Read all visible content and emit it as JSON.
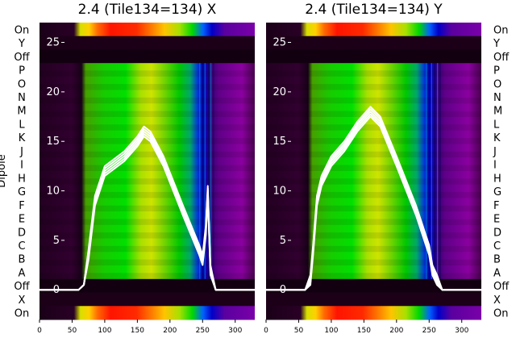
{
  "chart_data": [
    {
      "type": "heatmap",
      "title": "2.4 (Tile134=134) X",
      "ylabel": "Dipole",
      "xlim": [
        0,
        330
      ],
      "x_ticks": [
        0,
        50,
        100,
        150,
        200,
        250,
        300
      ],
      "row_labels": [
        "On",
        "Y",
        "Off",
        "P",
        "O",
        "N",
        "M",
        "L",
        "K",
        "J",
        "I",
        "H",
        "G",
        "F",
        "E",
        "D",
        "C",
        "B",
        "A",
        "Off",
        "X",
        "On"
      ],
      "overlay_ylim": [
        -3,
        27
      ],
      "overlay_ticks": [
        0,
        5,
        10,
        15,
        20,
        25
      ],
      "overlay_line": {
        "color": "#ffffff",
        "x": [
          0,
          60,
          68,
          75,
          85,
          100,
          130,
          150,
          160,
          170,
          190,
          220,
          245,
          250,
          255,
          258,
          262,
          270,
          330
        ],
        "y": [
          0,
          0,
          0.5,
          3.5,
          9,
          12,
          13.5,
          15,
          16,
          15.5,
          13,
          8,
          4,
          3,
          6,
          10,
          2,
          0,
          0
        ]
      }
    },
    {
      "type": "heatmap",
      "title": "2.4 (Tile134=134) Y",
      "xlim": [
        0,
        330
      ],
      "x_ticks": [
        0,
        50,
        100,
        150,
        200,
        250,
        300
      ],
      "row_labels": [
        "On",
        "Y",
        "Off",
        "P",
        "O",
        "N",
        "M",
        "L",
        "K",
        "J",
        "I",
        "H",
        "G",
        "F",
        "E",
        "D",
        "C",
        "B",
        "A",
        "Off",
        "X",
        "On"
      ],
      "overlay_ylim": [
        -3,
        27
      ],
      "overlay_ticks": [
        0,
        5,
        10,
        15,
        20,
        25
      ],
      "overlay_line": {
        "color": "#ffffff",
        "x": [
          0,
          60,
          68,
          72,
          78,
          85,
          100,
          120,
          140,
          160,
          175,
          200,
          230,
          245,
          250,
          255,
          262,
          270,
          330
        ],
        "y": [
          0,
          0,
          1,
          4,
          9,
          11,
          13,
          14.5,
          16.5,
          18,
          17,
          13,
          8,
          5,
          4,
          2,
          1,
          0,
          0
        ]
      }
    }
  ]
}
